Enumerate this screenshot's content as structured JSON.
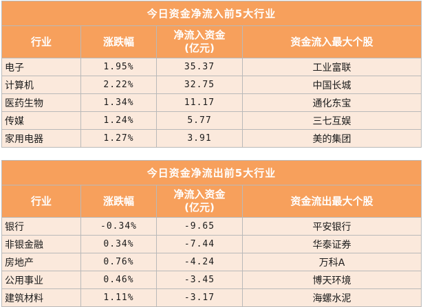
{
  "inflow": {
    "title": "今日资金净流入前5大行业",
    "headers": {
      "industry": "行业",
      "change": "涨跌幅",
      "netflow_line1": "净流入资金",
      "netflow_line2": "(亿元)",
      "top_stock": "资金流入最大个股"
    },
    "rows": [
      {
        "industry": "电子",
        "change": "1.95%",
        "netflow": "35.37",
        "stock": "工业富联"
      },
      {
        "industry": "计算机",
        "change": "2.22%",
        "netflow": "32.75",
        "stock": "中国长城"
      },
      {
        "industry": "医药生物",
        "change": "1.34%",
        "netflow": "11.17",
        "stock": "通化东宝"
      },
      {
        "industry": "传媒",
        "change": "1.24%",
        "netflow": "5.77",
        "stock": "三七互娱"
      },
      {
        "industry": "家用电器",
        "change": "1.27%",
        "netflow": "3.91",
        "stock": "美的集团"
      }
    ]
  },
  "outflow": {
    "title": "今日资金净流出前5大行业",
    "headers": {
      "industry": "行业",
      "change": "涨跌幅",
      "netflow_line1": "净流入资金",
      "netflow_line2": "(亿元)",
      "top_stock": "资金流出最大个股"
    },
    "rows": [
      {
        "industry": "银行",
        "change": "-0.34%",
        "netflow": "-9.65",
        "stock": "平安银行"
      },
      {
        "industry": "非银金融",
        "change": "0.34%",
        "netflow": "-7.44",
        "stock": "华泰证券"
      },
      {
        "industry": "房地产",
        "change": "0.76%",
        "netflow": "-4.24",
        "stock": "万科A"
      },
      {
        "industry": "公用事业",
        "change": "0.46%",
        "netflow": "-3.45",
        "stock": "博天环境"
      },
      {
        "industry": "建筑材料",
        "change": "1.11%",
        "netflow": "-3.17",
        "stock": "海螺水泥"
      }
    ]
  }
}
